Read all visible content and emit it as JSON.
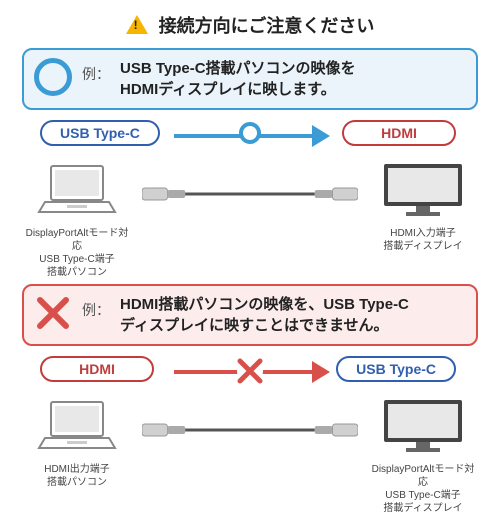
{
  "header": {
    "text": "接続方向にご注意ください"
  },
  "colors": {
    "blue": "#3b9bd4",
    "red": "#d9504a",
    "pill_blue": "#305fb0",
    "pill_red": "#c13c3c",
    "panel_ok_bg": "#eaf4fa",
    "panel_ng_bg": "#fdecec",
    "warning": "#f7b500"
  },
  "section_ok": {
    "example_label": "例：",
    "description": "USB Type-C搭載パソコンの映像を\nHDMIディスプレイに映します。",
    "left_pill": "USB Type-C",
    "right_pill": "HDMI",
    "left_device_caption": "DisplayPortAltモード対応\nUSB Type-C端子\n搭載パソコン",
    "right_device_caption": "HDMI入力端子\n搭載ディスプレイ",
    "direction": "left-to-right",
    "mid_symbol": "circle"
  },
  "section_ng": {
    "example_label": "例：",
    "description": "HDMI搭載パソコンの映像を、USB Type-C\nディスプレイに映すことはできません。",
    "left_pill": "HDMI",
    "right_pill": "USB Type-C",
    "left_device_caption": "HDMI出力端子\n搭載パソコン",
    "right_device_caption": "DisplayPortAltモード対応\nUSB Type-C端子\n搭載ディスプレイ",
    "direction": "left-to-right",
    "mid_symbol": "cross"
  }
}
